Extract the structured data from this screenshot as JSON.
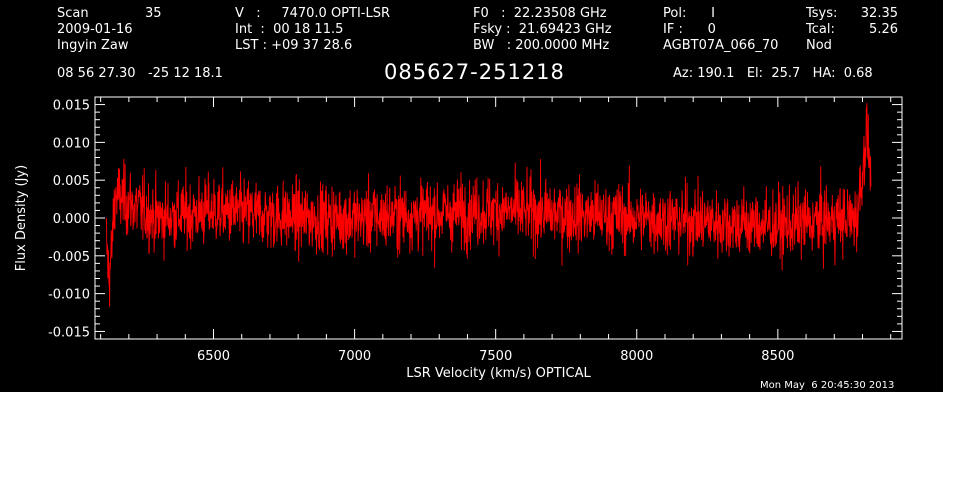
{
  "header": {
    "col1": [
      "Scan",
      "35",
      "2009-01-16",
      "Ingyin Zaw"
    ],
    "col2": [
      "V   :     7470.0 OPTI-LSR",
      "Int  :  00 18 11.5",
      "LST : +09 37 28.6"
    ],
    "col3": [
      "F0   :  22.23508 GHz",
      "Fsky :  21.69423 GHz",
      "BW   : 200.0000 MHz"
    ],
    "col4": [
      "Pol:      I",
      "IF :      0",
      "AGBT07A_066_70"
    ],
    "col5_labels": [
      "Tsys:",
      "Tcal:",
      "Nod"
    ],
    "col5_values": [
      "32.35",
      "5.26"
    ],
    "coords": "08 56 27.30   -25 12 18.1",
    "source": "085627-251218",
    "azelha": "Az: 190.1   El:  25.7   HA:  0.68"
  },
  "footer": {
    "timestamp": "Mon May  6 20:45:30 2013"
  },
  "colors": {
    "background": "#000000",
    "trace": "#ff0000",
    "axes": "#ffffff"
  },
  "chart_data": {
    "type": "line",
    "xlabel": "LSR Velocity (km/s) OPTICAL",
    "ylabel": "Flux Density (Jy)",
    "xlim": [
      6080,
      8940
    ],
    "ylim": [
      -0.016,
      0.016
    ],
    "xticks": [
      6500,
      7000,
      7500,
      8000,
      8500
    ],
    "xtick_labels": [
      "6500",
      "7000",
      "7500",
      "8000",
      "8500"
    ],
    "yticks": [
      -0.015,
      -0.01,
      -0.005,
      0.0,
      0.005,
      0.01,
      0.015
    ],
    "ytick_labels": [
      "-0.015",
      "-0.010",
      "-0.005",
      "0.000",
      "0.005",
      "0.010",
      "0.015"
    ],
    "grid": false,
    "series": [
      {
        "color": "#ff0000",
        "x_range": [
          6120,
          8830
        ],
        "noise_rms": 0.0032,
        "points": [
          [
            6120,
            -0.003
          ],
          [
            6130,
            -0.008
          ],
          [
            6140,
            -0.004
          ],
          [
            6150,
            0.003
          ],
          [
            6200,
            0.002
          ],
          [
            6300,
            0.0
          ],
          [
            6500,
            0.001
          ],
          [
            6800,
            0.0
          ],
          [
            7000,
            0.0
          ],
          [
            7500,
            0.001
          ],
          [
            8000,
            0.0
          ],
          [
            8500,
            -0.001
          ],
          [
            8780,
            0.0
          ],
          [
            8800,
            0.006
          ],
          [
            8815,
            0.012
          ],
          [
            8830,
            0.005
          ]
        ]
      }
    ]
  }
}
